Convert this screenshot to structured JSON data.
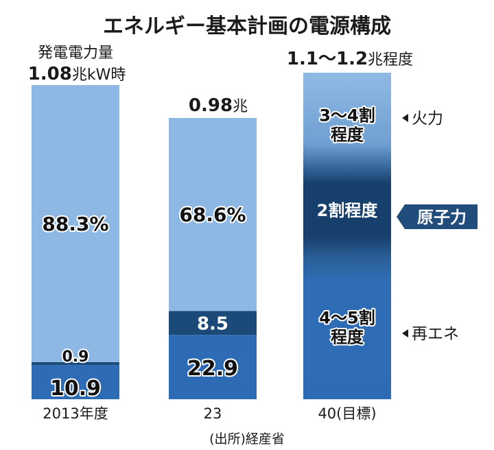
{
  "chart_data": {
    "type": "bar",
    "title": "エネルギー基本計画の電源構成",
    "totals_heading": "発電電力量",
    "categories": [
      "2013年度",
      "23",
      "40(目標)"
    ],
    "totals": [
      {
        "value": "1.08",
        "unit": "兆kW時"
      },
      {
        "value": "0.98",
        "unit": "兆"
      },
      {
        "value": "1.1〜1.2",
        "unit": "兆程度"
      }
    ],
    "series": [
      {
        "name": "再エネ",
        "values": [
          10.9,
          22.9,
          null
        ],
        "labels": [
          "10.9",
          "22.9",
          "4〜5割\n程度"
        ],
        "color": "#2d6cb5"
      },
      {
        "name": "原子力",
        "values": [
          0.9,
          8.5,
          null
        ],
        "labels": [
          "0.9",
          "8.5",
          "2割程度"
        ],
        "color": "#1b4a78"
      },
      {
        "name": "火力",
        "values": [
          88.3,
          68.6,
          null
        ],
        "labels": [
          "88.3%",
          "68.6%",
          "3〜4割\n程度"
        ],
        "color": "#8db8e3"
      }
    ],
    "target_ranges": {
      "再エネ": [
        40,
        50
      ],
      "原子力": [
        20,
        20
      ],
      "火力": [
        30,
        40
      ]
    },
    "ylim": [
      0,
      100
    ],
    "legend_placement": "right",
    "source": "(出所)経産省",
    "colors": {
      "fire": "#8db8e3",
      "nuclear": "#1b4a78",
      "renewable": "#2d6cb5",
      "nuclear_tag": "#214d7d"
    }
  }
}
